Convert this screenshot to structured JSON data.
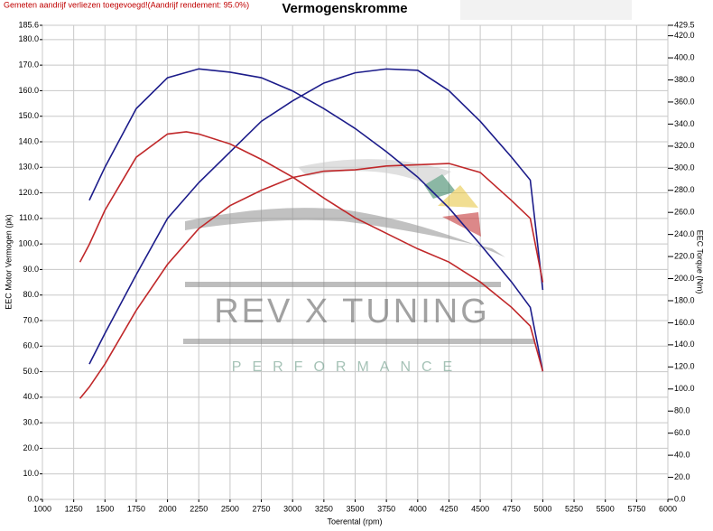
{
  "chart_data": {
    "type": "line",
    "notice": "Gemeten aandrijf verliezen toegevoegd!(Aandrijf rendement: 95.0%)",
    "title": "Vermogenskromme",
    "x_label": "Toerental (rpm)",
    "y_label": "EEC Motor Vermogen (pk)",
    "y2_label": "EEC Torque (Nm)",
    "watermark": {
      "title": "REV X TUNING",
      "subtitle": "PERFORMANCE"
    },
    "grid": true,
    "xlim": [
      1000,
      6000
    ],
    "xticks": [
      1000,
      1250,
      1500,
      1750,
      2000,
      2250,
      2500,
      2750,
      3000,
      3250,
      3500,
      3750,
      4000,
      4250,
      4500,
      4750,
      5000,
      5250,
      5500,
      5750,
      6000
    ],
    "ylim": [
      0,
      185.6
    ],
    "yticks": [
      {
        "value": 0,
        "label": "0.0"
      },
      {
        "value": 10,
        "label": "10.0"
      },
      {
        "value": 20,
        "label": "20.0"
      },
      {
        "value": 30,
        "label": "30.0"
      },
      {
        "value": 40,
        "label": "40.0"
      },
      {
        "value": 50,
        "label": "50.0"
      },
      {
        "value": 60,
        "label": "60.0"
      },
      {
        "value": 70,
        "label": "70.0"
      },
      {
        "value": 80,
        "label": "80.0"
      },
      {
        "value": 90,
        "label": "90.0"
      },
      {
        "value": 100,
        "label": "100.0"
      },
      {
        "value": 110,
        "label": "110.0"
      },
      {
        "value": 120,
        "label": "120.0"
      },
      {
        "value": 130,
        "label": "130.0"
      },
      {
        "value": 140,
        "label": "140.0"
      },
      {
        "value": 150,
        "label": "150.0"
      },
      {
        "value": 160,
        "label": "160.0"
      },
      {
        "value": 170,
        "label": "170.0"
      },
      {
        "value": 180,
        "label": "180.0"
      },
      185.6
    ],
    "y2lim": [
      0,
      429.5
    ],
    "y2ticks": [
      {
        "value": 0,
        "label": "0.0"
      },
      {
        "value": 20,
        "label": "20.0"
      },
      {
        "value": 40,
        "label": "40.0"
      },
      {
        "value": 60,
        "label": "60.0"
      },
      {
        "value": 80,
        "label": "80.0"
      },
      {
        "value": 100,
        "label": "100.0"
      },
      {
        "value": 120,
        "label": "120.0"
      },
      {
        "value": 140,
        "label": "140.0"
      },
      {
        "value": 160,
        "label": "160.0"
      },
      {
        "value": 180,
        "label": "180.0"
      },
      {
        "value": 200,
        "label": "200.0"
      },
      {
        "value": 220,
        "label": "220.0"
      },
      {
        "value": 240,
        "label": "240.0"
      },
      {
        "value": 260,
        "label": "260.0"
      },
      {
        "value": 280,
        "label": "280.0"
      },
      {
        "value": 300,
        "label": "300.0"
      },
      {
        "value": 320,
        "label": "320.0"
      },
      {
        "value": 340,
        "label": "340.0"
      },
      {
        "value": 360,
        "label": "360.0"
      },
      {
        "value": 380,
        "label": "380.0"
      },
      {
        "value": 400,
        "label": "400.0"
      },
      {
        "value": 420,
        "label": "420.0"
      },
      429.5
    ],
    "series": [
      {
        "color": "#1c1c8a",
        "axis": "y",
        "x": [
          1375,
          1500,
          1750,
          2000,
          2250,
          2500,
          2750,
          3000,
          3250,
          3500,
          3750,
          4000,
          4250,
          4500,
          4750,
          4900,
          5000
        ],
        "values": [
          53,
          65,
          88,
          110,
          124,
          136,
          148,
          156,
          163,
          167,
          168.5,
          168,
          160,
          148,
          134,
          125,
          82
        ]
      },
      {
        "color": "#c0282a",
        "axis": "y",
        "x": [
          1300,
          1375,
          1500,
          1750,
          2000,
          2250,
          2500,
          2750,
          3000,
          3250,
          3500,
          3750,
          4000,
          4250,
          4500,
          4750,
          4900,
          5000
        ],
        "values": [
          39.5,
          44,
          53,
          74,
          92,
          106,
          115,
          121,
          126,
          128.5,
          129,
          130.5,
          131,
          131.5,
          128,
          117,
          110,
          85
        ]
      },
      {
        "color": "#1c1c8a",
        "axis": "y2",
        "x": [
          1375,
          1500,
          1750,
          2000,
          2250,
          2500,
          2750,
          3000,
          3250,
          3500,
          3750,
          4000,
          4250,
          4500,
          4750,
          4900,
          5000
        ],
        "values": [
          271,
          301,
          354,
          382,
          390,
          387,
          382,
          370,
          354,
          336,
          315,
          292,
          264,
          231,
          197,
          174,
          116
        ]
      },
      {
        "color": "#c0282a",
        "axis": "y2",
        "x": [
          1300,
          1375,
          1500,
          1750,
          2000,
          2150,
          2250,
          2500,
          2750,
          3000,
          3250,
          3500,
          3750,
          4000,
          4250,
          4500,
          4750,
          4900,
          5000
        ],
        "values": [
          215,
          231,
          262,
          310,
          331,
          333,
          331,
          322,
          308,
          292,
          273,
          255,
          241,
          227,
          215,
          197,
          174,
          157,
          116
        ]
      }
    ]
  }
}
